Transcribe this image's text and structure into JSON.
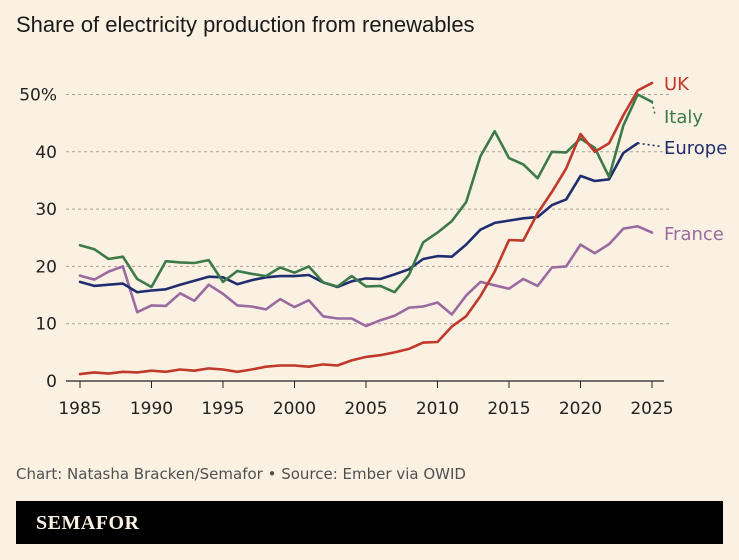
{
  "chart_data": {
    "type": "line",
    "title": "Share of electricity production from renewables",
    "x_ticks": [
      1985,
      1990,
      1995,
      2000,
      2005,
      2010,
      2015,
      2020,
      2025
    ],
    "y_ticks": [
      "0",
      "10",
      "20",
      "30",
      "40",
      "50%"
    ],
    "ylim": [
      0,
      55
    ],
    "xlim": [
      1985,
      2025
    ],
    "grid": true,
    "legend": "inline labels at line ends",
    "series": [
      {
        "name": "UK",
        "color": "#c0392b",
        "x": [
          1985,
          1986,
          1987,
          1988,
          1989,
          1990,
          1991,
          1992,
          1993,
          1994,
          1995,
          1996,
          1997,
          1998,
          1999,
          2000,
          2001,
          2002,
          2003,
          2004,
          2005,
          2006,
          2007,
          2008,
          2009,
          2010,
          2011,
          2012,
          2013,
          2014,
          2015,
          2016,
          2017,
          2018,
          2019,
          2020,
          2021,
          2022,
          2023,
          2024,
          2025
        ],
        "values": [
          1.2,
          1.5,
          1.3,
          1.6,
          1.5,
          1.8,
          1.6,
          2.0,
          1.8,
          2.2,
          2.0,
          1.6,
          2.0,
          2.5,
          2.7,
          2.7,
          2.5,
          2.9,
          2.7,
          3.6,
          4.2,
          4.5,
          5.0,
          5.6,
          6.7,
          6.8,
          9.5,
          11.3,
          14.8,
          19.1,
          24.6,
          24.5,
          29.3,
          33.0,
          37.1,
          43.1,
          40.0,
          41.5,
          46.4,
          50.7,
          52.0
        ]
      },
      {
        "name": "Italy",
        "color": "#3d7a47",
        "x": [
          1985,
          1986,
          1987,
          1988,
          1989,
          1990,
          1991,
          1992,
          1993,
          1994,
          1995,
          1996,
          1997,
          1998,
          1999,
          2000,
          2001,
          2002,
          2003,
          2004,
          2005,
          2006,
          2007,
          2008,
          2009,
          2010,
          2011,
          2012,
          2013,
          2014,
          2015,
          2016,
          2017,
          2018,
          2019,
          2020,
          2021,
          2022,
          2023,
          2024,
          2025
        ],
        "values": [
          23.7,
          23.0,
          21.3,
          21.7,
          17.8,
          16.4,
          20.9,
          20.7,
          20.6,
          21.1,
          17.3,
          19.2,
          18.7,
          18.3,
          19.8,
          18.9,
          20.0,
          17.2,
          16.5,
          18.3,
          16.5,
          16.6,
          15.5,
          18.5,
          24.2,
          25.9,
          27.9,
          31.2,
          39.2,
          43.6,
          38.9,
          37.8,
          35.4,
          40.0,
          39.9,
          42.3,
          40.7,
          35.6,
          44.6,
          50.0,
          48.7
        ]
      },
      {
        "name": "Europe",
        "color": "#1f2e6e",
        "x": [
          1985,
          1986,
          1987,
          1988,
          1989,
          1990,
          1991,
          1992,
          1993,
          1994,
          1995,
          1996,
          1997,
          1998,
          1999,
          2000,
          2001,
          2002,
          2003,
          2004,
          2005,
          2006,
          2007,
          2008,
          2009,
          2010,
          2011,
          2012,
          2013,
          2014,
          2015,
          2016,
          2017,
          2018,
          2019,
          2020,
          2021,
          2022,
          2023,
          2024
        ],
        "values": [
          17.3,
          16.6,
          16.8,
          17.0,
          15.5,
          15.8,
          16.0,
          16.8,
          17.5,
          18.2,
          18.1,
          16.9,
          17.6,
          18.1,
          18.3,
          18.3,
          18.5,
          17.2,
          16.4,
          17.4,
          17.9,
          17.8,
          18.6,
          19.5,
          21.3,
          21.8,
          21.7,
          23.8,
          26.4,
          27.6,
          28.0,
          28.4,
          28.6,
          30.7,
          31.7,
          35.8,
          34.9,
          35.2,
          39.8,
          41.5
        ]
      },
      {
        "name": "France",
        "color": "#9a6aa0",
        "x": [
          1985,
          1986,
          1987,
          1988,
          1989,
          1990,
          1991,
          1992,
          1993,
          1994,
          1995,
          1996,
          1997,
          1998,
          1999,
          2000,
          2001,
          2002,
          2003,
          2004,
          2005,
          2006,
          2007,
          2008,
          2009,
          2010,
          2011,
          2012,
          2013,
          2014,
          2015,
          2016,
          2017,
          2018,
          2019,
          2020,
          2021,
          2022,
          2023,
          2024,
          2025
        ],
        "values": [
          18.4,
          17.7,
          19.1,
          20.0,
          12.0,
          13.2,
          13.1,
          15.3,
          14.0,
          16.8,
          15.2,
          13.2,
          13.0,
          12.5,
          14.3,
          12.9,
          14.1,
          11.3,
          10.9,
          10.9,
          9.6,
          10.6,
          11.4,
          12.8,
          13.0,
          13.7,
          11.6,
          14.9,
          17.3,
          16.7,
          16.1,
          17.8,
          16.6,
          19.8,
          20.0,
          23.8,
          22.3,
          23.9,
          26.6,
          27.0,
          25.9
        ]
      }
    ],
    "projection": {
      "Italy": {
        "x": [
          2025,
          2025.2
        ],
        "values": [
          48.7,
          46.6
        ]
      },
      "Europe": {
        "x": [
          2024,
          2025.7
        ],
        "values": [
          41.5,
          40.9
        ]
      }
    },
    "line_labels": {
      "UK": "UK",
      "Italy": "Italy",
      "Europe": "Europe",
      "France": "France"
    }
  },
  "footer": {
    "credit": "Chart: Natasha Bracken/Semafor • Source: Ember via OWID",
    "brand": "SEMAFOR"
  }
}
